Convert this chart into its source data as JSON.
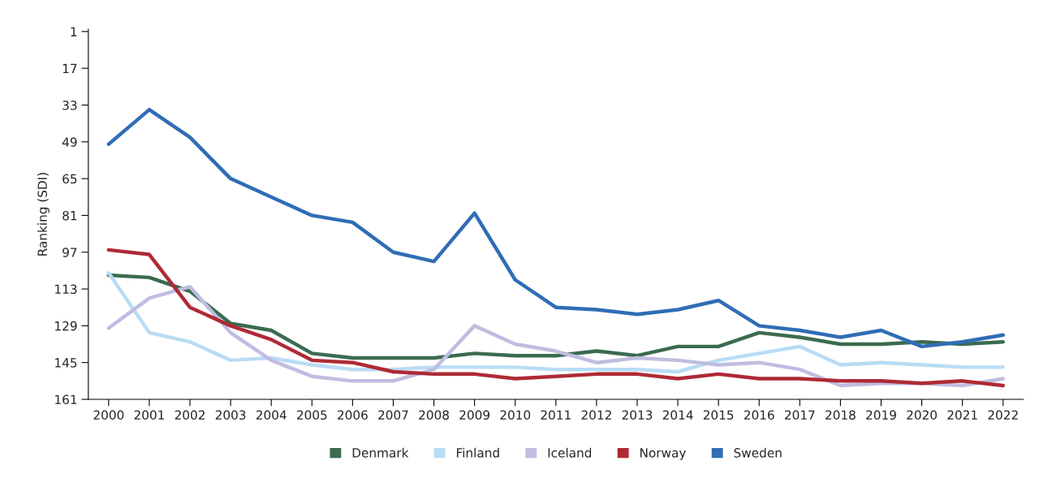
{
  "chart_data": {
    "type": "line",
    "ylabel": "Ranking (SDI)",
    "categories": [
      "2000",
      "2001",
      "2002",
      "2003",
      "2004",
      "2005",
      "2006",
      "2007",
      "2008",
      "2009",
      "2010",
      "2011",
      "2012",
      "2013",
      "2014",
      "2015",
      "2016",
      "2017",
      "2018",
      "2019",
      "2020",
      "2021",
      "2022"
    ],
    "series": [
      {
        "name": "Denmark",
        "color": "#3b6b50",
        "values": [
          107,
          108,
          114,
          128,
          131,
          141,
          143,
          143,
          143,
          141,
          142,
          142,
          140,
          142,
          138,
          138,
          132,
          134,
          137,
          137,
          136,
          137,
          136
        ]
      },
      {
        "name": "Finland",
        "color": "#b9dcf5",
        "values": [
          106,
          132,
          136,
          144,
          143,
          146,
          148,
          148,
          147,
          147,
          147,
          148,
          148,
          148,
          149,
          144,
          141,
          138,
          146,
          145,
          146,
          147,
          147
        ]
      },
      {
        "name": "Iceland",
        "color": "#bfbde0",
        "values": [
          130,
          117,
          112,
          132,
          144,
          151,
          153,
          153,
          148,
          129,
          137,
          140,
          145,
          143,
          144,
          146,
          145,
          148,
          155,
          154,
          154,
          155,
          152
        ]
      },
      {
        "name": "Norway",
        "color": "#ae2a35",
        "values": [
          96,
          98,
          121,
          129,
          135,
          144,
          145,
          149,
          150,
          150,
          152,
          151,
          150,
          150,
          152,
          150,
          152,
          152,
          153,
          153,
          154,
          153,
          155
        ]
      },
      {
        "name": "Sweden",
        "color": "#2f6db5",
        "values": [
          50,
          35,
          47,
          65,
          73,
          81,
          84,
          97,
          101,
          80,
          109,
          121,
          122,
          124,
          122,
          118,
          129,
          131,
          134,
          131,
          138,
          136,
          133
        ]
      }
    ],
    "ylim": [
      161,
      0
    ],
    "yticks": [
      1,
      17,
      33,
      49,
      65,
      81,
      97,
      113,
      129,
      145,
      161
    ],
    "grid": false,
    "legend": "bottom",
    "line_style": "solid",
    "marker": "none"
  }
}
